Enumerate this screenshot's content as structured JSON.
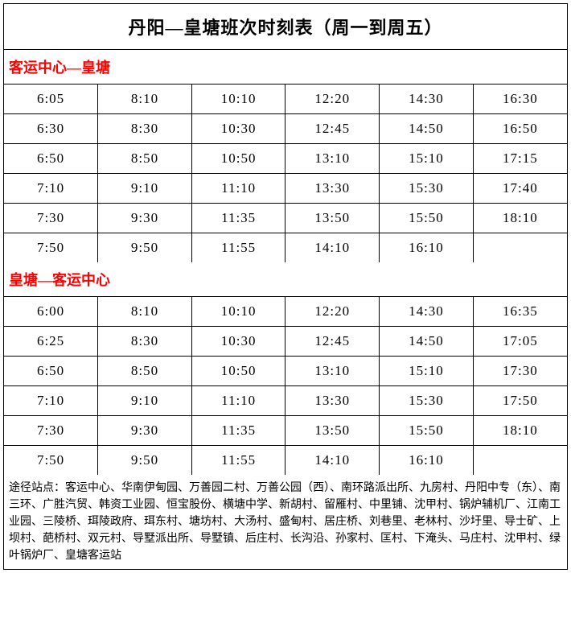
{
  "title": "丹阳—皇塘班次时刻表（周一到周五）",
  "section1": {
    "header": "客运中心—皇塘",
    "rows": [
      [
        "6:05",
        "8:10",
        "10:10",
        "12:20",
        "14:30",
        "16:30"
      ],
      [
        "6:30",
        "8:30",
        "10:30",
        "12:45",
        "14:50",
        "16:50"
      ],
      [
        "6:50",
        "8:50",
        "10:50",
        "13:10",
        "15:10",
        "17:15"
      ],
      [
        "7:10",
        "9:10",
        "11:10",
        "13:30",
        "15:30",
        "17:40"
      ],
      [
        "7:30",
        "9:30",
        "11:35",
        "13:50",
        "15:50",
        "18:10"
      ],
      [
        "7:50",
        "9:50",
        "11:55",
        "14:10",
        "16:10",
        ""
      ]
    ]
  },
  "section2": {
    "header": "皇塘—客运中心",
    "rows": [
      [
        "6:00",
        "8:10",
        "10:10",
        "12:20",
        "14:30",
        "16:35"
      ],
      [
        "6:25",
        "8:30",
        "10:30",
        "12:45",
        "14:50",
        "17:05"
      ],
      [
        "6:50",
        "8:50",
        "10:50",
        "13:10",
        "15:10",
        "17:30"
      ],
      [
        "7:10",
        "9:10",
        "11:10",
        "13:30",
        "15:30",
        "17:50"
      ],
      [
        "7:30",
        "9:30",
        "11:35",
        "13:50",
        "15:50",
        "18:10"
      ],
      [
        "7:50",
        "9:50",
        "11:55",
        "14:10",
        "16:10",
        ""
      ]
    ]
  },
  "notes": "途径站点：客运中心、华南伊甸园、万善园二村、万善公园（西）、南环路派出所、九房村、丹阳中专（东）、南三环、广胜汽贸、韩资工业园、恒宝股份、横塘中学、新胡村、留雁村、中里铺、沈甲村、锅炉辅机厂、江南工业园、三陵桥、珥陵政府、珥东村、塘坊村、大汤村、盛甸村、居庄桥、刘巷里、老林村、沙圩里、导士矿、上坝村、葩桥村、双元村、导墅派出所、导墅镇、后庄村、长沟沿、孙家村、匡村、下淹头、马庄村、沈甲村、绿叶锅炉厂、皇塘客运站",
  "styling": {
    "columns": 6,
    "border_color": "#000000",
    "header_color": "#ff0000",
    "text_color": "#000000",
    "background_color": "#ffffff",
    "title_fontsize": 22,
    "header_fontsize": 18,
    "cell_fontsize": 17,
    "notes_fontsize": 14
  }
}
